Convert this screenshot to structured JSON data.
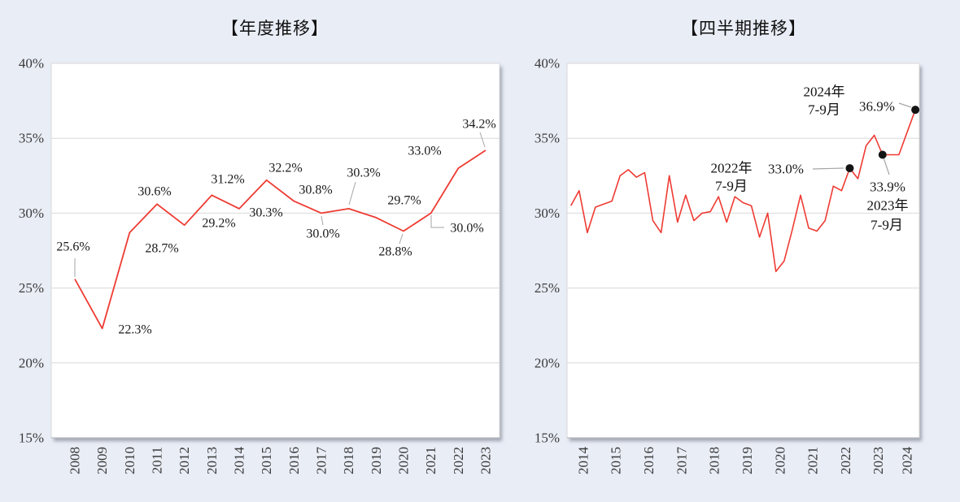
{
  "page": {
    "background_color": "#e9edf6"
  },
  "chart_data": [
    {
      "type": "line",
      "title": "【年度推移】",
      "x_unit": "year",
      "categories": [
        "2008",
        "2009",
        "2010",
        "2011",
        "2012",
        "2013",
        "2014",
        "2015",
        "2016",
        "2017",
        "2018",
        "2019",
        "2020",
        "2021",
        "2022",
        "2023"
      ],
      "values": [
        25.6,
        22.3,
        28.7,
        30.6,
        29.2,
        31.2,
        30.3,
        32.2,
        30.8,
        30.0,
        30.3,
        29.7,
        28.8,
        30.0,
        33.0,
        34.2
      ],
      "data_labels": [
        "25.6%",
        "22.3%",
        "28.7%",
        "30.6%",
        "29.2%",
        "31.2%",
        "30.3%",
        "32.2%",
        "30.8%",
        "30.0%",
        "30.3%",
        "29.7%",
        "28.8%",
        "30.0%",
        "33.0%",
        "34.2%"
      ],
      "ylim": [
        15,
        40
      ],
      "yticks": [
        {
          "label": "40%",
          "v": 40
        },
        {
          "label": "35%",
          "v": 35
        },
        {
          "label": "30%",
          "v": 30
        },
        {
          "label": "25%",
          "v": 25
        },
        {
          "label": "20%",
          "v": 20
        },
        {
          "label": "15%",
          "v": 15
        }
      ],
      "grid": true,
      "legend": "none",
      "line_color": "#ee3b33"
    },
    {
      "type": "line",
      "title": "【四半期推移】",
      "x_unit": "quarter",
      "values": [
        30.5,
        31.5,
        28.7,
        30.4,
        30.6,
        30.8,
        32.5,
        32.9,
        32.4,
        32.7,
        29.5,
        28.7,
        32.5,
        29.4,
        31.2,
        29.5,
        30.0,
        30.1,
        31.1,
        29.4,
        31.1,
        30.7,
        30.5,
        28.4,
        30.0,
        26.1,
        26.8,
        28.9,
        31.2,
        29.0,
        28.8,
        29.5,
        31.8,
        31.5,
        33.0,
        32.3,
        34.5,
        35.2,
        33.9,
        33.9,
        33.9,
        35.4,
        36.9
      ],
      "x_tick_labels": [
        "2014",
        "2015",
        "2016",
        "2017",
        "2018",
        "2019",
        "2020",
        "2021",
        "2022",
        "2023",
        "2024"
      ],
      "ylim": [
        15,
        40
      ],
      "yticks": [
        {
          "label": "40%",
          "v": 40
        },
        {
          "label": "35%",
          "v": 35
        },
        {
          "label": "30%",
          "v": 30
        },
        {
          "label": "25%",
          "v": 25
        },
        {
          "label": "20%",
          "v": 20
        },
        {
          "label": "15%",
          "v": 15
        }
      ],
      "grid": true,
      "legend": "none",
      "line_color": "#ee3b33",
      "marker_color": "#141414",
      "annotations": [
        {
          "label_line1": "2022年",
          "label_line2": "7-9月",
          "value_label": "33.0%",
          "point_index": 34
        },
        {
          "label_line1": "2023年",
          "label_line2": "7-9月",
          "value_label": "33.9%",
          "point_index": 38
        },
        {
          "label_line1": "2024年",
          "label_line2": "7-9月",
          "value_label": "36.9%",
          "point_index": 42
        }
      ]
    }
  ]
}
